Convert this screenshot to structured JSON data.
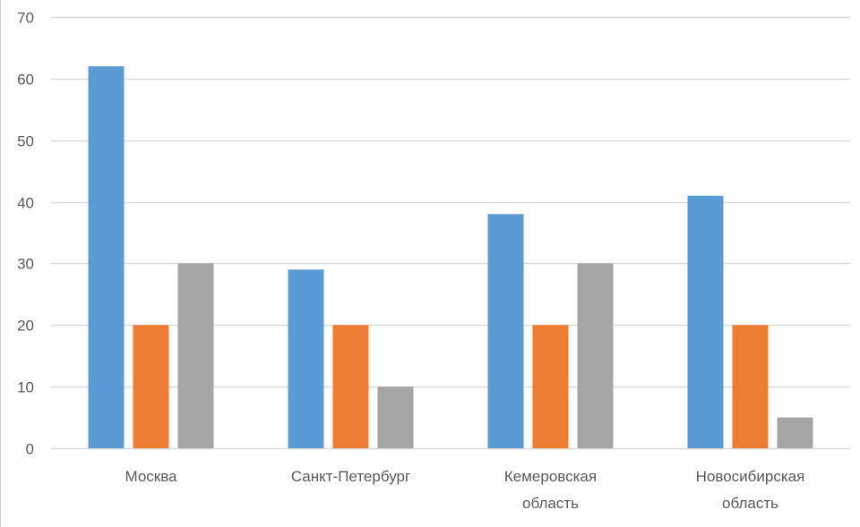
{
  "chart_data": {
    "type": "bar",
    "title": "",
    "xlabel": "",
    "ylabel": "",
    "categories": [
      [
        "Москва"
      ],
      [
        "Санкт-Петербург"
      ],
      [
        "Кемеровская",
        "область"
      ],
      [
        "Новосибирская",
        "область"
      ]
    ],
    "series": [
      {
        "values": [
          62,
          29,
          38,
          41
        ],
        "color": "#5b9bd5"
      },
      {
        "values": [
          20,
          20,
          20,
          20
        ],
        "color": "#ed7d31"
      },
      {
        "values": [
          30,
          10,
          30,
          5
        ],
        "color": "#a5a5a5"
      }
    ],
    "ylim": [
      0,
      70
    ],
    "yticks": [
      0,
      10,
      20,
      30,
      40,
      50,
      60,
      70
    ],
    "grid": true,
    "gridColor": "#d9d9d9",
    "legend": "none"
  }
}
